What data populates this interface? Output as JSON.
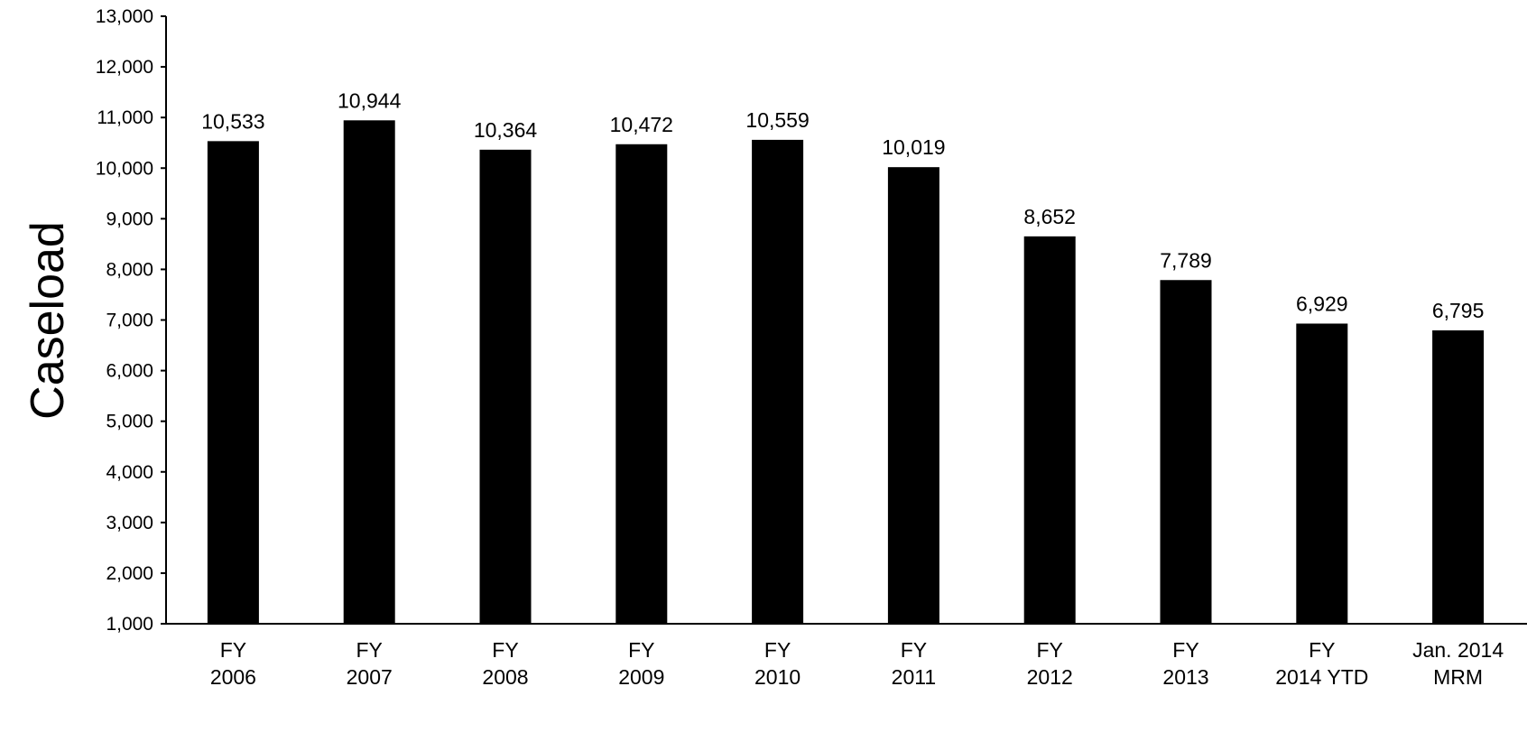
{
  "chart_data": {
    "type": "bar",
    "title": "",
    "xlabel": "",
    "ylabel": "Caseload",
    "ylim": [
      1000,
      13000
    ],
    "yticks": [
      1000,
      2000,
      3000,
      4000,
      5000,
      6000,
      7000,
      8000,
      9000,
      10000,
      11000,
      12000,
      13000
    ],
    "ytick_labels": [
      "1,000",
      "2,000",
      "3,000",
      "4,000",
      "5,000",
      "6,000",
      "7,000",
      "8,000",
      "9,000",
      "10,000",
      "11,000",
      "12,000",
      "13,000"
    ],
    "categories": [
      [
        "FY",
        "2006"
      ],
      [
        "FY",
        "2007"
      ],
      [
        "FY",
        "2008"
      ],
      [
        "FY",
        "2009"
      ],
      [
        "FY",
        "2010"
      ],
      [
        "FY",
        "2011"
      ],
      [
        "FY",
        "2012"
      ],
      [
        "FY",
        "2013"
      ],
      [
        "FY",
        "2014 YTD"
      ],
      [
        "Jan. 2014",
        "MRM"
      ]
    ],
    "values": [
      10533,
      10944,
      10364,
      10472,
      10559,
      10019,
      8652,
      7789,
      6929,
      6795
    ],
    "data_labels": [
      "10,533",
      "10,944",
      "10,364",
      "10,472",
      "10,559",
      "10,019",
      "8,652",
      "7,789",
      "6,929",
      "6,795"
    ],
    "grid": false,
    "legend": "none",
    "bar_color": "#000000",
    "axis_color": "#000000"
  }
}
